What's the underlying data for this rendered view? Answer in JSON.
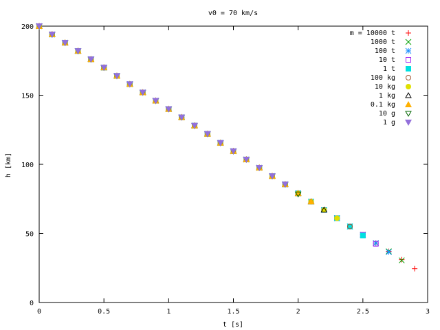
{
  "chart_data": {
    "type": "scatter",
    "title": "v0 = 70 km/s",
    "xlabel": "t [s]",
    "ylabel": "h [km]",
    "xlim": [
      0,
      3
    ],
    "ylim": [
      0,
      200
    ],
    "xticks": [
      0,
      0.5,
      1,
      1.5,
      2,
      2.5,
      3
    ],
    "xtick_labels": [
      "0",
      "0.5",
      "1",
      "1.5",
      "2",
      "2.5",
      "3"
    ],
    "yticks": [
      0,
      50,
      100,
      150,
      200
    ],
    "ytick_labels": [
      "0",
      "50",
      "100",
      "150",
      "200"
    ],
    "grid": false,
    "legend_position": "top-right",
    "series": [
      {
        "name": "m = 10000 t",
        "marker": "plus",
        "color": "#ff0000",
        "x": [
          0,
          0.1,
          0.2,
          0.3,
          0.4,
          0.5,
          0.6,
          0.7,
          0.8,
          0.9,
          1.0,
          1.1,
          1.2,
          1.3,
          1.4,
          1.5,
          1.6,
          1.7,
          1.8,
          1.9,
          2.0,
          2.1,
          2.2,
          2.3,
          2.4,
          2.5,
          2.6,
          2.7,
          2.8,
          2.9
        ],
        "y": [
          200,
          194,
          188,
          182,
          176,
          170,
          164,
          158,
          152,
          146,
          140,
          134,
          128,
          122,
          115.5,
          109.5,
          103.5,
          97.5,
          91.5,
          85.5,
          79,
          73,
          67,
          61,
          55,
          49,
          43,
          37,
          31,
          24.5
        ]
      },
      {
        "name": "1000 t",
        "marker": "cross",
        "color": "#00a000",
        "x": [
          0,
          0.1,
          0.2,
          0.3,
          0.4,
          0.5,
          0.6,
          0.7,
          0.8,
          0.9,
          1.0,
          1.1,
          1.2,
          1.3,
          1.4,
          1.5,
          1.6,
          1.7,
          1.8,
          1.9,
          2.0,
          2.1,
          2.2,
          2.3,
          2.4,
          2.5,
          2.6,
          2.7,
          2.8
        ],
        "y": [
          200,
          194,
          188,
          182,
          176,
          170,
          164,
          158,
          152,
          146,
          140,
          134,
          128,
          122,
          115.5,
          109.5,
          103.5,
          97.5,
          91.5,
          85.5,
          79,
          73,
          67,
          61,
          55,
          49,
          43,
          37,
          30.5
        ]
      },
      {
        "name": "100 t",
        "marker": "star",
        "color": "#1e90ff",
        "x": [
          0,
          0.1,
          0.2,
          0.3,
          0.4,
          0.5,
          0.6,
          0.7,
          0.8,
          0.9,
          1.0,
          1.1,
          1.2,
          1.3,
          1.4,
          1.5,
          1.6,
          1.7,
          1.8,
          1.9,
          2.0,
          2.1,
          2.2,
          2.3,
          2.4,
          2.5,
          2.6,
          2.7
        ],
        "y": [
          200,
          194,
          188,
          182,
          176,
          170,
          164,
          158,
          152,
          146,
          140,
          134,
          128,
          122,
          115.5,
          109.5,
          103.5,
          97.5,
          91.5,
          85.5,
          79,
          73,
          67,
          61,
          55,
          49,
          43,
          36.5
        ]
      },
      {
        "name": "10 t",
        "marker": "square-open",
        "color": "#a020f0",
        "x": [
          0,
          0.1,
          0.2,
          0.3,
          0.4,
          0.5,
          0.6,
          0.7,
          0.8,
          0.9,
          1.0,
          1.1,
          1.2,
          1.3,
          1.4,
          1.5,
          1.6,
          1.7,
          1.8,
          1.9,
          2.0,
          2.1,
          2.2,
          2.3,
          2.4,
          2.5,
          2.6
        ],
        "y": [
          200,
          194,
          188,
          182,
          176,
          170,
          164,
          158,
          152,
          146,
          140,
          134,
          128,
          122,
          115.5,
          109.5,
          103.5,
          97.5,
          91.5,
          85.5,
          79,
          73,
          67,
          61,
          55,
          49,
          42.5
        ]
      },
      {
        "name": "1 t",
        "marker": "square-filled",
        "color": "#00e0e0",
        "x": [
          0,
          0.1,
          0.2,
          0.3,
          0.4,
          0.5,
          0.6,
          0.7,
          0.8,
          0.9,
          1.0,
          1.1,
          1.2,
          1.3,
          1.4,
          1.5,
          1.6,
          1.7,
          1.8,
          1.9,
          2.0,
          2.1,
          2.2,
          2.3,
          2.4,
          2.5
        ],
        "y": [
          200,
          194,
          188,
          182,
          176,
          170,
          164,
          158,
          152,
          146,
          140,
          134,
          128,
          122,
          115.5,
          109.5,
          103.5,
          97.5,
          91.5,
          85.5,
          79,
          73,
          67,
          61,
          55,
          48.5
        ]
      },
      {
        "name": "100 kg",
        "marker": "circle-open",
        "color": "#a0522d",
        "x": [
          0,
          0.1,
          0.2,
          0.3,
          0.4,
          0.5,
          0.6,
          0.7,
          0.8,
          0.9,
          1.0,
          1.1,
          1.2,
          1.3,
          1.4,
          1.5,
          1.6,
          1.7,
          1.8,
          1.9,
          2.0,
          2.1,
          2.2,
          2.3,
          2.4
        ],
        "y": [
          200,
          194,
          188,
          182,
          176,
          170,
          164,
          158,
          152,
          146,
          140,
          134,
          128,
          122,
          115.5,
          109.5,
          103.5,
          97.5,
          91.5,
          85.5,
          79,
          73,
          67,
          61,
          55
        ]
      },
      {
        "name": "10 kg",
        "marker": "circle-filled",
        "color": "#e0e000",
        "x": [
          0,
          0.1,
          0.2,
          0.3,
          0.4,
          0.5,
          0.6,
          0.7,
          0.8,
          0.9,
          1.0,
          1.1,
          1.2,
          1.3,
          1.4,
          1.5,
          1.6,
          1.7,
          1.8,
          1.9,
          2.0,
          2.1,
          2.2,
          2.3
        ],
        "y": [
          200,
          194,
          188,
          182,
          176,
          170,
          164,
          158,
          152,
          146,
          140,
          134,
          128,
          122,
          115.5,
          109.5,
          103.5,
          97.5,
          91.5,
          85.5,
          79,
          73,
          67,
          61
        ]
      },
      {
        "name": "1 kg",
        "marker": "triangle-open",
        "color": "#000000",
        "x": [
          0,
          0.1,
          0.2,
          0.3,
          0.4,
          0.5,
          0.6,
          0.7,
          0.8,
          0.9,
          1.0,
          1.1,
          1.2,
          1.3,
          1.4,
          1.5,
          1.6,
          1.7,
          1.8,
          1.9,
          2.0,
          2.1,
          2.2
        ],
        "y": [
          200,
          194,
          188,
          182,
          176,
          170,
          164,
          158,
          152,
          146,
          140,
          134,
          128,
          122,
          115.5,
          109.5,
          103.5,
          97.5,
          91.5,
          85.5,
          79,
          73,
          67
        ]
      },
      {
        "name": "0.1 kg",
        "marker": "triangle-filled",
        "color": "#ffb000",
        "x": [
          0,
          0.1,
          0.2,
          0.3,
          0.4,
          0.5,
          0.6,
          0.7,
          0.8,
          0.9,
          1.0,
          1.1,
          1.2,
          1.3,
          1.4,
          1.5,
          1.6,
          1.7,
          1.8,
          1.9,
          2.0,
          2.1
        ],
        "y": [
          200,
          194,
          188,
          182,
          176,
          170,
          164,
          158,
          152,
          146,
          140,
          134,
          128,
          122,
          115.5,
          109.5,
          103.5,
          97.5,
          91.5,
          85.5,
          79,
          73
        ]
      },
      {
        "name": "10 g",
        "marker": "triangle-down-open",
        "color": "#006400",
        "x": [
          0,
          0.1,
          0.2,
          0.3,
          0.4,
          0.5,
          0.6,
          0.7,
          0.8,
          0.9,
          1.0,
          1.1,
          1.2,
          1.3,
          1.4,
          1.5,
          1.6,
          1.7,
          1.8,
          1.9,
          2.0
        ],
        "y": [
          200,
          194,
          188,
          182,
          176,
          170,
          164,
          158,
          152,
          146,
          140,
          134,
          128,
          122,
          115.5,
          109.5,
          103.5,
          97.5,
          91.5,
          85.5,
          78.5
        ]
      },
      {
        "name": "1 g",
        "marker": "triangle-down-filled",
        "color": "#9370db",
        "x": [
          0,
          0.1,
          0.2,
          0.3,
          0.4,
          0.5,
          0.6,
          0.7,
          0.8,
          0.9,
          1.0,
          1.1,
          1.2,
          1.3,
          1.4,
          1.5,
          1.6,
          1.7,
          1.8,
          1.9
        ],
        "y": [
          200,
          194,
          188,
          182,
          176,
          170,
          164,
          158,
          152,
          146,
          140,
          134,
          128,
          122,
          115.5,
          109.5,
          103.5,
          97.5,
          91.5,
          85.5
        ]
      }
    ]
  }
}
